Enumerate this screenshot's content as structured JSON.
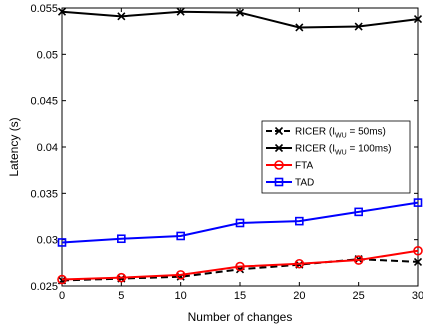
{
  "chart_data": {
    "type": "line",
    "title": "",
    "xlabel": "Number of changes",
    "ylabel": "Latency (s)",
    "xlim": [
      0,
      30
    ],
    "ylim": [
      0.025,
      0.055
    ],
    "x_ticks": [
      "0",
      "5",
      "10",
      "15",
      "20",
      "25",
      "30"
    ],
    "y_ticks": [
      "0.025",
      "0.03",
      "0.035",
      "0.04",
      "0.045",
      "0.05",
      "0.055"
    ],
    "grid": false,
    "legend_position": "middle-right",
    "x": [
      0,
      5,
      10,
      15,
      20,
      25,
      30
    ],
    "series": [
      {
        "name": "RICER (I_WU = 50ms)",
        "legend_main": "RICER (I",
        "legend_sub": "WU",
        "legend_rest": " = 50ms)",
        "color": "#000000",
        "dash": "dashed",
        "marker": "x",
        "values": [
          0.0256,
          0.0258,
          0.026,
          0.0268,
          0.0273,
          0.0279,
          0.0276
        ]
      },
      {
        "name": "RICER (I_WU = 100ms)",
        "legend_main": "RICER (I",
        "legend_sub": "WU",
        "legend_rest": " = 100ms)",
        "color": "#000000",
        "dash": "solid",
        "marker": "x",
        "values": [
          0.0546,
          0.0541,
          0.0546,
          0.0545,
          0.0529,
          0.053,
          0.0538
        ]
      },
      {
        "name": "FTA",
        "legend_main": "FTA",
        "legend_sub": "",
        "legend_rest": "",
        "color": "#ff0000",
        "dash": "solid",
        "marker": "circle",
        "values": [
          0.0257,
          0.0259,
          0.0262,
          0.0271,
          0.0274,
          0.0278,
          0.0288
        ]
      },
      {
        "name": "TAD",
        "legend_main": "TAD",
        "legend_sub": "",
        "legend_rest": "",
        "color": "#0000ff",
        "dash": "solid",
        "marker": "square",
        "values": [
          0.0297,
          0.0301,
          0.0304,
          0.0318,
          0.032,
          0.033,
          0.034
        ]
      }
    ]
  }
}
